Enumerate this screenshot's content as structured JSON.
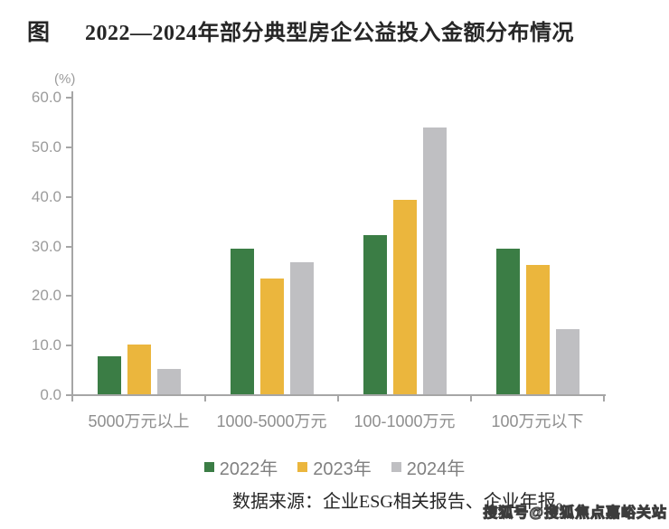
{
  "title": {
    "figure_label": "图",
    "text": "2022—2024年部分典型房企公益投入金额分布情况"
  },
  "chart_data": {
    "type": "bar",
    "title": "2022—2024年部分典型房企公益投入金额分布情况",
    "unit_label": "(%)",
    "xlabel": "",
    "ylabel": "(%)",
    "ylim": [
      0,
      60
    ],
    "ytick_labels": [
      "0.0",
      "10.0",
      "20.0",
      "30.0",
      "40.0",
      "50.0",
      "60.0"
    ],
    "grid": false,
    "legend_position": "bottom",
    "categories": [
      "5000万元以上",
      "1000-5000万元",
      "100-1000万元",
      "100万元以下"
    ],
    "series": [
      {
        "name": "2022年",
        "color": "#3B7D45",
        "values": [
          7.8,
          29.5,
          32.3,
          29.5
        ]
      },
      {
        "name": "2023年",
        "color": "#EBB63D",
        "values": [
          10.3,
          23.5,
          39.4,
          26.2
        ]
      },
      {
        "name": "2024年",
        "color": "#BFBFC2",
        "values": [
          5.3,
          26.8,
          54.0,
          13.3
        ]
      }
    ]
  },
  "source_note": "数据来源：企业ESG相关报告、企业年报。",
  "watermark": "搜狐号@搜狐焦点嘉峪关站",
  "colors": {
    "axis": "#a6a6a6",
    "axis_text": "#9b9b9b",
    "category_text": "#8f8f8f",
    "legend_text": "#808080",
    "title_text": "#262626"
  }
}
